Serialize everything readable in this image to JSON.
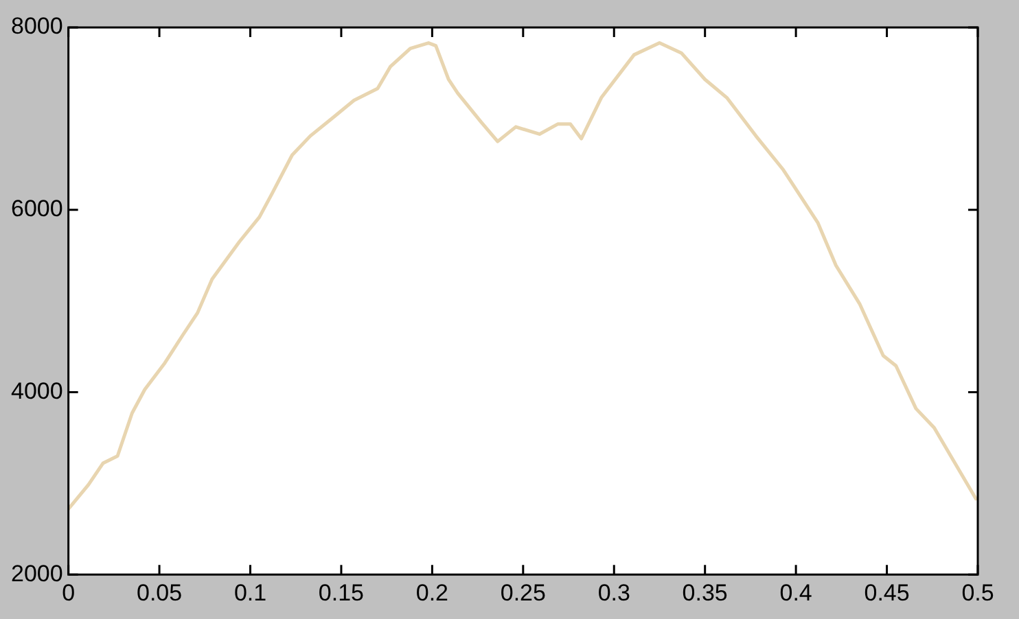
{
  "chart_data": {
    "type": "line",
    "x": [
      0,
      0.011,
      0.019,
      0.027,
      0.035,
      0.042,
      0.053,
      0.063,
      0.071,
      0.079,
      0.094,
      0.105,
      0.112,
      0.123,
      0.133,
      0.146,
      0.157,
      0.17,
      0.177,
      0.188,
      0.198,
      0.202,
      0.209,
      0.214,
      0.227,
      0.236,
      0.246,
      0.259,
      0.269,
      0.276,
      0.282,
      0.293,
      0.311,
      0.325,
      0.337,
      0.35,
      0.362,
      0.378,
      0.393,
      0.412,
      0.422,
      0.435,
      0.448,
      0.455,
      0.466,
      0.476,
      0.499
    ],
    "series": [
      {
        "color": "#e8d5b0",
        "values": [
          2720,
          2985,
          3220,
          3300,
          3770,
          4030,
          4320,
          4630,
          4870,
          5240,
          5650,
          5920,
          6180,
          6600,
          6810,
          7020,
          7200,
          7330,
          7570,
          7770,
          7830,
          7800,
          7430,
          7280,
          6960,
          6750,
          6910,
          6830,
          6940,
          6940,
          6780,
          7230,
          7700,
          7830,
          7720,
          7430,
          7230,
          6810,
          6440,
          5860,
          5390,
          4970,
          4400,
          4290,
          3820,
          3610,
          2830
        ]
      }
    ],
    "xlim": [
      0,
      0.5
    ],
    "xticks": [
      0,
      0.05,
      0.1,
      0.15,
      0.2,
      0.25,
      0.3,
      0.35,
      0.4,
      0.45,
      0.5
    ],
    "ylim": [
      2000,
      8000
    ],
    "yticks": [
      2000,
      4000,
      6000,
      8000
    ],
    "grid": false,
    "legend": false,
    "marker": "none",
    "line_style": "solid"
  }
}
